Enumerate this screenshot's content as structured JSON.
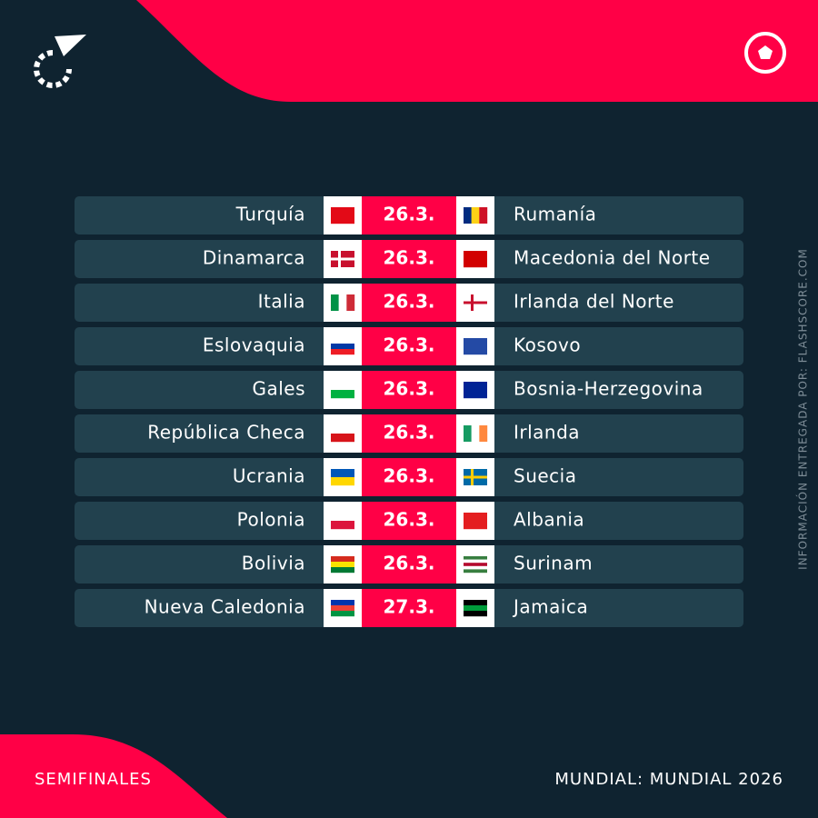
{
  "title_side": "INFORMACIÓN ENTREGADA POR: FLASHSCORE.COM",
  "matches": [
    {
      "home": "Turquía",
      "date": "26.3.",
      "away": "Rumanía"
    },
    {
      "home": "Dinamarca",
      "date": "26.3.",
      "away": "Macedonia del Norte"
    },
    {
      "home": "Italia",
      "date": "26.3.",
      "away": "Irlanda del Norte"
    },
    {
      "home": "Eslovaquia",
      "date": "26.3.",
      "away": "Kosovo"
    },
    {
      "home": "Gales",
      "date": "26.3.",
      "away": "Bosnia-Herzegovina"
    },
    {
      "home": "República Checa",
      "date": "26.3.",
      "away": "Irlanda"
    },
    {
      "home": "Ucrania",
      "date": "26.3.",
      "away": "Suecia"
    },
    {
      "home": "Polonia",
      "date": "26.3.",
      "away": "Albania"
    },
    {
      "home": "Bolivia",
      "date": "26.3.",
      "away": "Surinam"
    },
    {
      "home": "Nueva Caledonia",
      "date": "27.3.",
      "away": "Jamaica"
    }
  ],
  "footer": {
    "stage": "SEMIFINALES",
    "competition": "MUNDIAL: MUNDIAL 2026"
  }
}
